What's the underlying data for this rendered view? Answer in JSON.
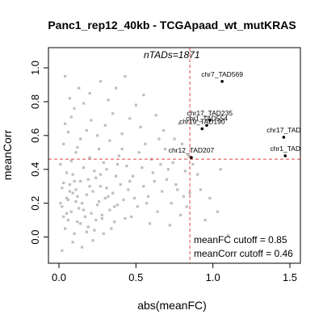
{
  "chart_data": {
    "type": "scatter",
    "title": "Panc1_rep12_40kb - TCGApaad_wt_mutKRAS",
    "xlabel": "abs(meanFC)",
    "ylabel": "meanCorr",
    "xlim": [
      0,
      1.5
    ],
    "ylim": [
      -0.15,
      1.0
    ],
    "x_ticks": [
      "0.0",
      "0.5",
      "1.0",
      "1.5"
    ],
    "y_ticks": [
      "0.0",
      "0.2",
      "0.4",
      "0.6",
      "0.8",
      "1.0"
    ],
    "n_tads_label": "nTADs=1871",
    "cutoffs": {
      "meanFC": 0.85,
      "meanCorr": 0.46
    },
    "cutoff_text": [
      "meanFC cutoff = 0.85",
      "meanCorr cutoff = 0.46"
    ],
    "colors": {
      "points": "#bebebe",
      "highlight": "#000000",
      "cutoff_line": "#dd4444"
    },
    "highlighted": [
      {
        "label": "chr7_TAD569",
        "x": 1.06,
        "y": 0.92
      },
      {
        "label": "chr17_TAD235",
        "x": 0.98,
        "y": 0.69
      },
      {
        "label": "chr1_TAD554",
        "x": 0.96,
        "y": 0.66
      },
      {
        "label": "chr19_TAD190",
        "x": 0.93,
        "y": 0.64
      },
      {
        "label": "chr17_TAD",
        "x": 1.46,
        "y": 0.59
      },
      {
        "label": "chr12_TAD207",
        "x": 0.86,
        "y": 0.47
      },
      {
        "label": "chr1_TAD",
        "x": 1.47,
        "y": 0.48
      }
    ],
    "grey_points": [
      [
        0.02,
        0.18
      ],
      [
        0.05,
        0.23
      ],
      [
        0.08,
        0.15
      ],
      [
        0.11,
        0.28
      ],
      [
        0.03,
        0.12
      ],
      [
        0.15,
        0.2
      ],
      [
        0.07,
        0.31
      ],
      [
        0.12,
        0.09
      ],
      [
        0.18,
        0.25
      ],
      [
        0.04,
        0.05
      ],
      [
        0.09,
        0.37
      ],
      [
        0.21,
        0.14
      ],
      [
        0.06,
        0.22
      ],
      [
        0.14,
        0.33
      ],
      [
        0.25,
        0.19
      ],
      [
        0.1,
        0.02
      ],
      [
        0.16,
        0.41
      ],
      [
        0.02,
        0.29
      ],
      [
        0.22,
        0.27
      ],
      [
        0.28,
        0.11
      ],
      [
        0.08,
        0.45
      ],
      [
        0.13,
        0.17
      ],
      [
        0.19,
        0.06
      ],
      [
        0.3,
        0.23
      ],
      [
        0.05,
        0.38
      ],
      [
        0.24,
        0.35
      ],
      [
        0.11,
        0.5
      ],
      [
        0.33,
        0.16
      ],
      [
        0.17,
        0.12
      ],
      [
        0.27,
        0.3
      ],
      [
        0.03,
        0.55
      ],
      [
        0.2,
        0.47
      ],
      [
        0.35,
        0.26
      ],
      [
        0.09,
        -0.03
      ],
      [
        0.14,
        0.58
      ],
      [
        0.38,
        0.19
      ],
      [
        0.23,
        0.04
      ],
      [
        0.31,
        0.4
      ],
      [
        0.06,
        0.62
      ],
      [
        0.4,
        0.31
      ],
      [
        0.12,
        0.53
      ],
      [
        0.26,
        0.52
      ],
      [
        0.42,
        0.22
      ],
      [
        0.18,
        0.63
      ],
      [
        0.36,
        0.09
      ],
      [
        0.04,
        0.67
      ],
      [
        0.29,
        0.44
      ],
      [
        0.45,
        0.28
      ],
      [
        0.15,
        -0.06
      ],
      [
        0.33,
        0.57
      ],
      [
        0.08,
        0.71
      ],
      [
        0.48,
        0.36
      ],
      [
        0.21,
        0.69
      ],
      [
        0.39,
        0.48
      ],
      [
        0.02,
        -0.08
      ],
      [
        0.51,
        0.18
      ],
      [
        0.25,
        0.6
      ],
      [
        0.44,
        0.42
      ],
      [
        0.1,
        0.76
      ],
      [
        0.55,
        0.3
      ],
      [
        0.3,
        0.66
      ],
      [
        0.47,
        0.12
      ],
      [
        0.16,
        0.79
      ],
      [
        0.58,
        0.24
      ],
      [
        0.35,
        0.73
      ],
      [
        0.52,
        0.5
      ],
      [
        0.07,
        0.82
      ],
      [
        0.61,
        0.38
      ],
      [
        0.2,
        0.85
      ],
      [
        0.41,
        0.61
      ],
      [
        0.64,
        0.15
      ],
      [
        0.13,
        0.88
      ],
      [
        0.56,
        0.55
      ],
      [
        0.27,
        0.92
      ],
      [
        0.67,
        0.27
      ],
      [
        0.46,
        0.7
      ],
      [
        0.04,
        0.95
      ],
      [
        0.7,
        0.34
      ],
      [
        0.32,
        0.81
      ],
      [
        0.6,
        0.46
      ],
      [
        0.18,
        0.03
      ],
      [
        0.73,
        0.2
      ],
      [
        0.37,
        0.88
      ],
      [
        0.65,
        0.58
      ],
      [
        0.76,
        0.31
      ],
      [
        0.5,
        0.78
      ],
      [
        0.22,
        -0.02
      ],
      [
        0.79,
        0.13
      ],
      [
        0.43,
        0.95
      ],
      [
        0.69,
        0.52
      ],
      [
        0.82,
        0.39
      ],
      [
        0.55,
        0.84
      ],
      [
        0.01,
        0.43
      ],
      [
        0.85,
        0.26
      ],
      [
        0.28,
        0.13
      ],
      [
        0.74,
        0.44
      ],
      [
        0.06,
        0.1
      ],
      [
        0.34,
        0.05
      ],
      [
        0.59,
        0.08
      ],
      [
        0.8,
        0.55
      ],
      [
        0.11,
        0.21
      ],
      [
        0.19,
        0.34
      ],
      [
        0.26,
        0.21
      ],
      [
        0.31,
        0.29
      ],
      [
        0.37,
        0.36
      ],
      [
        0.43,
        0.11
      ],
      [
        0.49,
        0.23
      ],
      [
        0.54,
        0.41
      ],
      [
        0.62,
        0.33
      ],
      [
        0.68,
        0.63
      ],
      [
        0.72,
        0.07
      ],
      [
        0.77,
        0.28
      ],
      [
        0.83,
        0.18
      ],
      [
        0.09,
        0.26
      ],
      [
        0.14,
        0.08
      ],
      [
        0.23,
        0.39
      ],
      [
        0.29,
        0.02
      ],
      [
        0.36,
        0.18
      ],
      [
        0.41,
        0.52
      ],
      [
        0.53,
        0.65
      ],
      [
        0.63,
        0.72
      ],
      [
        0.71,
        0.4
      ],
      [
        0.78,
        0.67
      ],
      [
        0.84,
        0.48
      ],
      [
        0.01,
        0.2
      ],
      [
        0.03,
        0.32
      ],
      [
        0.05,
        0.14
      ],
      [
        0.07,
        0.27
      ],
      [
        0.1,
        0.33
      ],
      [
        0.12,
        0.24
      ],
      [
        0.16,
        0.16
      ],
      [
        0.2,
        0.3
      ],
      [
        0.24,
        0.1
      ],
      [
        0.27,
        0.37
      ],
      [
        0.32,
        0.24
      ],
      [
        0.38,
        0.43
      ],
      [
        0.46,
        0.33
      ],
      [
        0.57,
        0.2
      ],
      [
        0.66,
        0.43
      ],
      [
        0.75,
        0.58
      ],
      [
        0.81,
        0.24
      ],
      [
        0.87,
        0.43
      ],
      [
        0.9,
        0.37
      ],
      [
        0.98,
        0.23
      ],
      [
        1.03,
        0.15
      ],
      [
        1.1,
        0.01
      ],
      [
        0.92,
        0.28
      ],
      [
        1.05,
        0.4
      ],
      [
        0.95,
        0.1
      ]
    ]
  }
}
